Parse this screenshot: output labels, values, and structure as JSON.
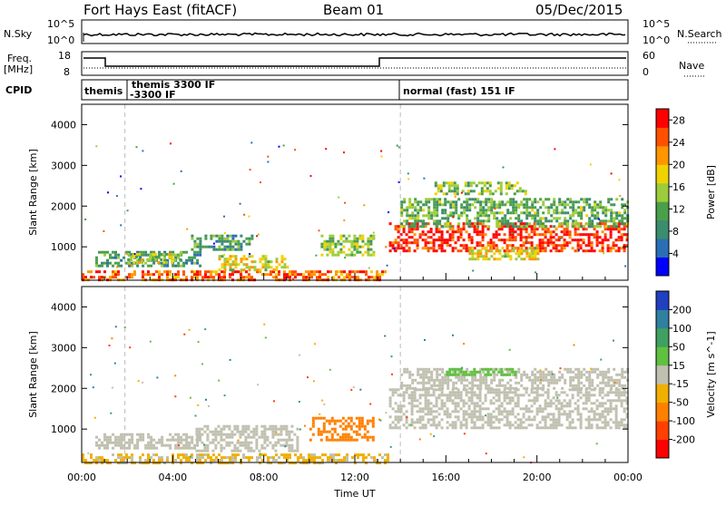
{
  "header": {
    "station": "Fort Hays East (fitACF)",
    "beam": "Beam 01",
    "date": "05/Dec/2015"
  },
  "top_panel": {
    "nsky_label": "N.Sky",
    "nsky_ticks": [
      "10^5",
      "10^0"
    ],
    "nsearch_label": "N.Search",
    "nsearch_ticks": [
      "10^5",
      "10^0"
    ]
  },
  "freq_panel": {
    "freq_label_line1": "Freq.",
    "freq_label_line2": "[MHz]",
    "freq_ticks": [
      "18",
      "8"
    ],
    "nave_label": "Nave",
    "nave_ticks": [
      "60",
      "0"
    ]
  },
  "cpid_panel": {
    "label": "CPID",
    "segments": [
      {
        "text": "themis",
        "start": 0.0
      },
      {
        "text": "themis 3300 IF",
        "start": 1.9
      },
      {
        "text": "-3300 IF",
        "start": 1.9
      },
      {
        "text": "normal (fast) 151 IF",
        "start": 14.0
      }
    ]
  },
  "colors": {
    "power_scale": [
      "#0000ff",
      "#2a6fb4",
      "#3c8c6e",
      "#4aa04a",
      "#9ccc3c",
      "#f0d200",
      "#ff9600",
      "#ff5000",
      "#ff0000"
    ],
    "velocity_scale": [
      "#2040c0",
      "#3080a0",
      "#40a060",
      "#60c040",
      "#c0c0b0",
      "#f0b000",
      "#ff8000",
      "#ff4000",
      "#ff0000"
    ],
    "scan_line": "#000000"
  },
  "chart_data": [
    {
      "type": "heatmap",
      "title": "",
      "xlabel": "",
      "ylabel": "Slant Range [km]",
      "xlim": [
        0,
        24
      ],
      "ylim": [
        180,
        4500
      ],
      "y_ticks": [
        "1000",
        "2000",
        "3000",
        "4000"
      ],
      "colorbar": {
        "label": "Power [dB]",
        "ticks": [
          "4",
          "8",
          "12",
          "16",
          "20",
          "24",
          "28"
        ],
        "range": [
          0,
          30
        ]
      },
      "regions": [
        {
          "t0": 0.0,
          "t1": 13.5,
          "r0": 180,
          "r1": 420,
          "value": 24
        },
        {
          "t0": 0.6,
          "t1": 5.2,
          "r0": 500,
          "r1": 900,
          "value": 10
        },
        {
          "t0": 2.0,
          "t1": 4.5,
          "r0": 600,
          "r1": 850,
          "value": 16
        },
        {
          "t0": 4.8,
          "t1": 7.5,
          "r0": 900,
          "r1": 1300,
          "value": 10
        },
        {
          "t0": 6.0,
          "t1": 9.0,
          "r0": 400,
          "r1": 800,
          "value": 18
        },
        {
          "t0": 10.5,
          "t1": 12.8,
          "r0": 800,
          "r1": 1300,
          "value": 14
        },
        {
          "t0": 13.5,
          "t1": 24.0,
          "r0": 900,
          "r1": 1600,
          "value": 27
        },
        {
          "t0": 14.0,
          "t1": 24.0,
          "r0": 1500,
          "r1": 2200,
          "value": 12
        },
        {
          "t0": 15.5,
          "t1": 19.5,
          "r0": 2300,
          "r1": 2600,
          "value": 14
        },
        {
          "t0": 17.0,
          "t1": 20.0,
          "r0": 700,
          "r1": 1000,
          "value": 18
        }
      ]
    },
    {
      "type": "heatmap",
      "title": "",
      "xlabel": "Time UT",
      "ylabel": "Slant Range [km]",
      "xlim": [
        0,
        24
      ],
      "ylim": [
        180,
        4500
      ],
      "x_ticks": [
        "00:00",
        "04:00",
        "08:00",
        "12:00",
        "16:00",
        "20:00",
        "00:00"
      ],
      "y_ticks": [
        "1000",
        "2000",
        "3000",
        "4000"
      ],
      "colorbar": {
        "label": "Velocity [m s^-1]",
        "ticks": [
          "200",
          "100",
          "50",
          "15",
          "-15",
          "-50",
          "-100",
          "-200"
        ]
      },
      "regions": [
        {
          "t0": 0.0,
          "t1": 13.5,
          "r0": 180,
          "r1": 400,
          "value": -20
        },
        {
          "t0": 0.6,
          "t1": 5.2,
          "r0": 500,
          "r1": 900,
          "value": 0
        },
        {
          "t0": 5.0,
          "t1": 9.5,
          "r0": 450,
          "r1": 1100,
          "value": 0
        },
        {
          "t0": 10.0,
          "t1": 12.8,
          "r0": 700,
          "r1": 1300,
          "value": -60
        },
        {
          "t0": 13.5,
          "t1": 24.0,
          "r0": 1000,
          "r1": 2000,
          "value": 0
        },
        {
          "t0": 14.0,
          "t1": 24.0,
          "r0": 2000,
          "r1": 2500,
          "value": 0
        },
        {
          "t0": 16.0,
          "t1": 19.0,
          "r0": 2300,
          "r1": 2500,
          "value": 30
        }
      ]
    }
  ]
}
